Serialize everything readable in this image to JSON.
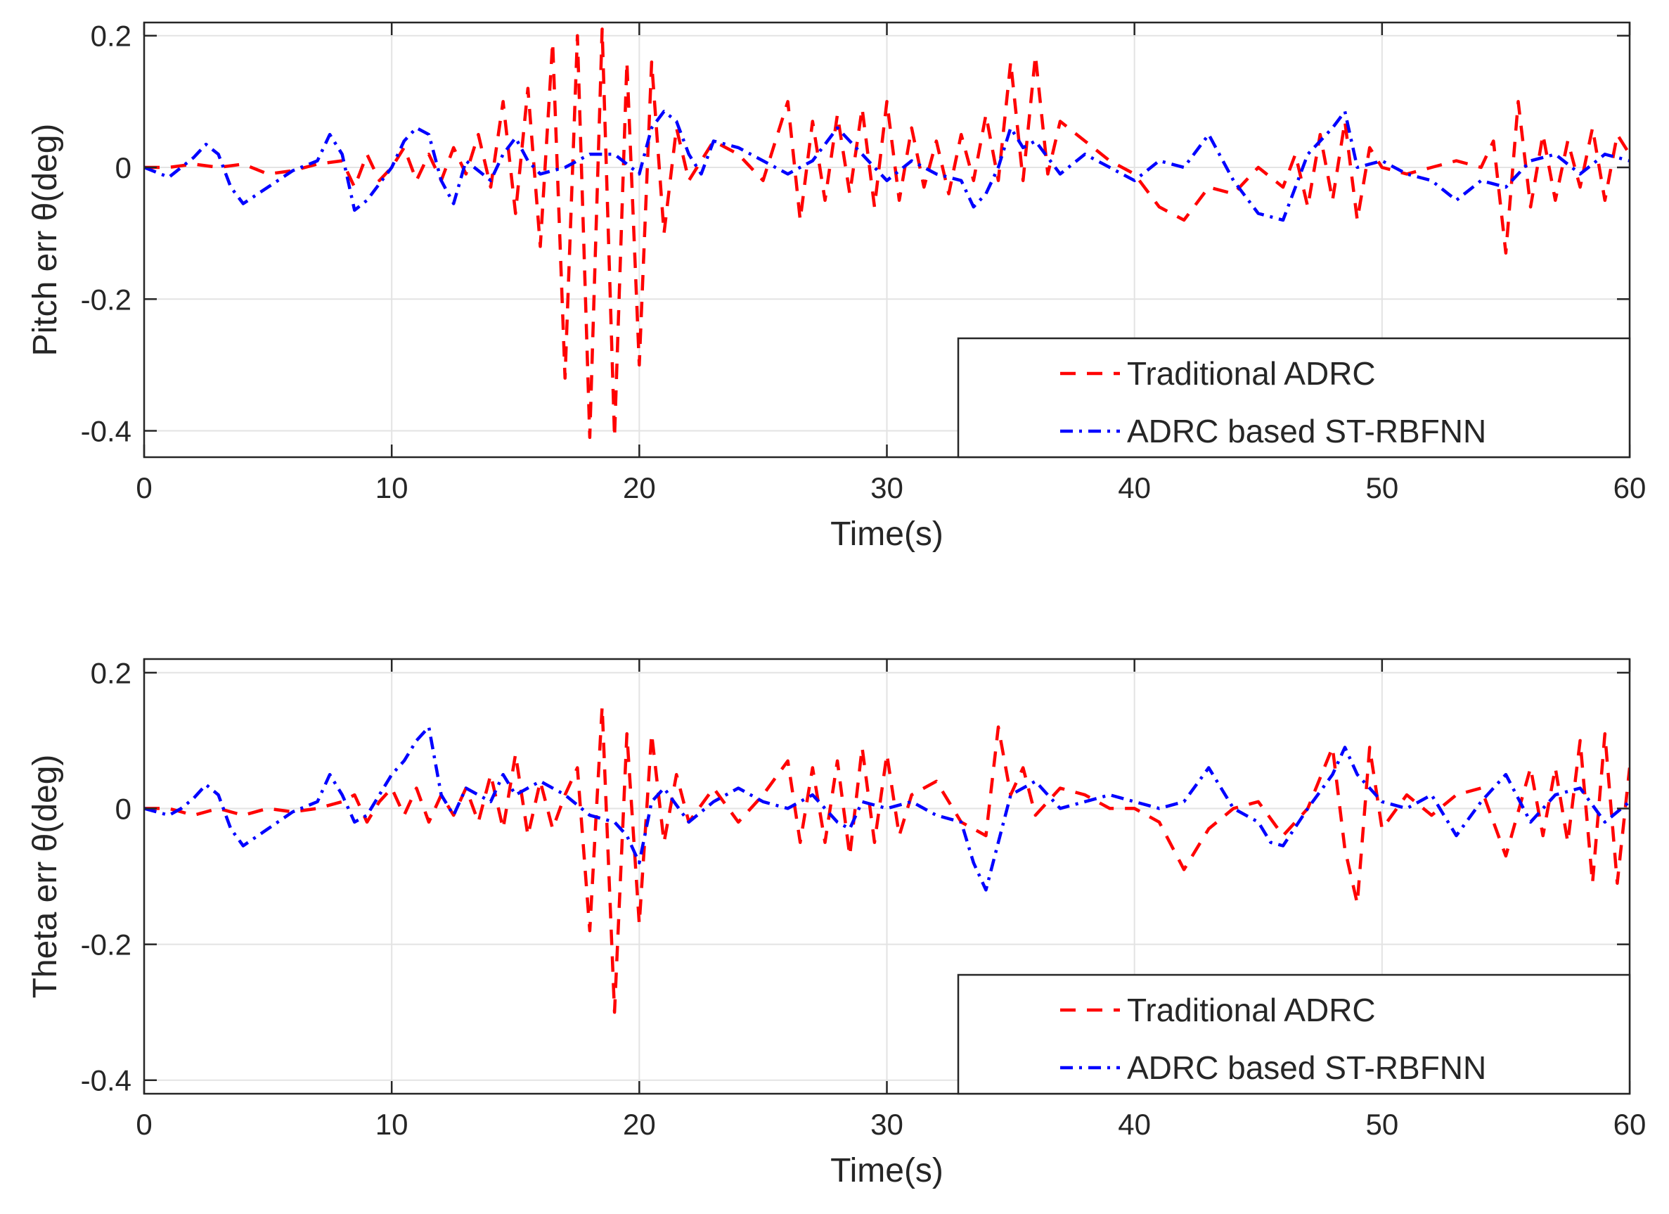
{
  "chart_data": [
    {
      "type": "line",
      "title": "",
      "xlabel": "Time(s)",
      "ylabel": "Pitch err θ(deg)",
      "xlim": [
        0,
        60
      ],
      "ylim": [
        -0.44,
        0.22
      ],
      "xticks": [
        0,
        10,
        20,
        30,
        40,
        50,
        60
      ],
      "xtick_labels": [
        "0",
        "10",
        "20",
        "30",
        "40",
        "50",
        "60"
      ],
      "yticks": [
        0.2,
        0,
        -0.2,
        -0.4
      ],
      "ytick_labels": [
        "0.2",
        "0",
        "-0.2",
        "-0.4"
      ],
      "grid": true,
      "legend_position": "bottom-right",
      "series": [
        {
          "name": "Traditional ADRC",
          "color": "#ff0000",
          "style": "dashed",
          "x": [
            0,
            1,
            2,
            3,
            4,
            5,
            6,
            7,
            8,
            8.5,
            9,
            9.5,
            10,
            10.5,
            11,
            11.5,
            12,
            12.5,
            13,
            13.5,
            14,
            14.5,
            15,
            15.5,
            16,
            16.5,
            17,
            17.5,
            18,
            18.5,
            19,
            19.5,
            20,
            20.5,
            21,
            21.5,
            22,
            23,
            24,
            25,
            26,
            26.5,
            27,
            27.5,
            28,
            28.5,
            29,
            29.5,
            30,
            30.5,
            31,
            31.5,
            32,
            32.5,
            33,
            33.5,
            34,
            34.5,
            35,
            35.5,
            36,
            36.5,
            37,
            38,
            39,
            40,
            41,
            42,
            43,
            44,
            45,
            46,
            46.5,
            47,
            47.5,
            48,
            48.5,
            49,
            49.5,
            50,
            51,
            52,
            53,
            54,
            54.5,
            55,
            55.5,
            56,
            56.5,
            57,
            57.5,
            58,
            58.5,
            59,
            59.5,
            60
          ],
          "values": [
            0,
            0,
            0.005,
            0,
            0.005,
            -0.01,
            -0.005,
            0.005,
            0.01,
            -0.03,
            0.02,
            -0.02,
            0,
            0.03,
            -0.02,
            0.02,
            -0.02,
            0.03,
            -0.01,
            0.05,
            -0.03,
            0.1,
            -0.07,
            0.12,
            -0.12,
            0.19,
            -0.32,
            0.2,
            -0.41,
            0.21,
            -0.41,
            0.16,
            -0.3,
            0.16,
            -0.1,
            0.06,
            -0.02,
            0.04,
            0.02,
            -0.02,
            0.1,
            -0.08,
            0.07,
            -0.05,
            0.08,
            -0.04,
            0.09,
            -0.06,
            0.1,
            -0.05,
            0.06,
            -0.03,
            0.04,
            -0.04,
            0.05,
            -0.02,
            0.08,
            -0.02,
            0.16,
            -0.02,
            0.17,
            -0.01,
            0.07,
            0.04,
            0.01,
            -0.01,
            -0.06,
            -0.08,
            -0.03,
            -0.04,
            0,
            -0.03,
            0.02,
            -0.06,
            0.05,
            -0.05,
            0.07,
            -0.08,
            0.03,
            0,
            -0.01,
            0,
            0.01,
            0,
            0.04,
            -0.13,
            0.1,
            -0.06,
            0.05,
            -0.05,
            0.04,
            -0.03,
            0.06,
            -0.05,
            0.05,
            0.02
          ]
        },
        {
          "name": "ADRC based ST-RBFNN",
          "color": "#0000ff",
          "style": "dashdot",
          "x": [
            0,
            1,
            1.5,
            2,
            2.5,
            3,
            3.5,
            4,
            5,
            6,
            7,
            7.5,
            8,
            8.5,
            9,
            10,
            10.5,
            11,
            11.5,
            12,
            12.5,
            13,
            14,
            14.5,
            15,
            15.5,
            16,
            17,
            18,
            19,
            20,
            20.5,
            21,
            21.5,
            22,
            22.5,
            23,
            24,
            25,
            26,
            27,
            28,
            29,
            30,
            31,
            32,
            33,
            33.5,
            34,
            34.5,
            35,
            35.5,
            36,
            37,
            38,
            39,
            40,
            41,
            42,
            43,
            44,
            45,
            46,
            47,
            48,
            48.5,
            49,
            50,
            51,
            52,
            53,
            54,
            55,
            56,
            57,
            58,
            59,
            60
          ],
          "values": [
            0,
            -0.015,
            0,
            0.015,
            0.035,
            0.02,
            -0.03,
            -0.055,
            -0.03,
            -0.005,
            0.01,
            0.05,
            0.02,
            -0.065,
            -0.05,
            0,
            0.04,
            0.06,
            0.05,
            -0.02,
            -0.055,
            0.01,
            -0.02,
            0.02,
            0.045,
            0.01,
            -0.01,
            0,
            0.02,
            0.02,
            -0.01,
            0.06,
            0.085,
            0.07,
            0.02,
            -0.01,
            0.04,
            0.03,
            0.01,
            -0.01,
            0.01,
            0.06,
            0.02,
            -0.02,
            0.01,
            -0.01,
            -0.02,
            -0.06,
            -0.04,
            0,
            0.06,
            0.03,
            0.04,
            -0.01,
            0.02,
            0,
            -0.02,
            0.01,
            0,
            0.05,
            -0.02,
            -0.07,
            -0.08,
            0.02,
            0.06,
            0.085,
            0,
            0.01,
            -0.01,
            -0.02,
            -0.05,
            -0.02,
            -0.03,
            0.01,
            0.02,
            -0.01,
            0.02,
            0.01
          ]
        }
      ]
    },
    {
      "type": "line",
      "title": "",
      "xlabel": "Time(s)",
      "ylabel": "Theta err θ(deg)",
      "xlim": [
        0,
        60
      ],
      "ylim": [
        -0.42,
        0.22
      ],
      "xticks": [
        0,
        10,
        20,
        30,
        40,
        50,
        60
      ],
      "xtick_labels": [
        "0",
        "10",
        "20",
        "30",
        "40",
        "50",
        "60"
      ],
      "yticks": [
        0.2,
        0,
        -0.2,
        -0.4
      ],
      "ytick_labels": [
        "0.2",
        "0",
        "-0.2",
        "-0.4"
      ],
      "grid": true,
      "legend_position": "bottom-right",
      "series": [
        {
          "name": "Traditional ADRC",
          "color": "#ff0000",
          "style": "dashed",
          "x": [
            0,
            1,
            2,
            3,
            4,
            5,
            6,
            7,
            8,
            8.5,
            9,
            9.5,
            10,
            10.5,
            11,
            11.5,
            12,
            12.5,
            13,
            13.5,
            14,
            14.5,
            15,
            15.5,
            16,
            16.5,
            17,
            17.5,
            18,
            18.5,
            19,
            19.5,
            20,
            20.5,
            21,
            21.5,
            22,
            23,
            24,
            25,
            26,
            26.5,
            27,
            27.5,
            28,
            28.5,
            29,
            29.5,
            30,
            30.5,
            31,
            32,
            33,
            34,
            34.5,
            35,
            35.5,
            36,
            37,
            38,
            39,
            40,
            41,
            42,
            43,
            44,
            45,
            46,
            47,
            48,
            48.5,
            49,
            49.5,
            50,
            51,
            52,
            53,
            54,
            55,
            56,
            56.5,
            57,
            57.5,
            58,
            58.5,
            59,
            59.5,
            60
          ],
          "values": [
            0,
            0,
            -0.01,
            0,
            -0.01,
            0,
            -0.005,
            0,
            0.01,
            0.02,
            -0.02,
            0.01,
            0.03,
            -0.01,
            0.03,
            -0.02,
            0.02,
            -0.01,
            0.03,
            -0.02,
            0.05,
            -0.03,
            0.08,
            -0.04,
            0.04,
            -0.03,
            0.02,
            0.06,
            -0.18,
            0.15,
            -0.3,
            0.11,
            -0.17,
            0.11,
            -0.05,
            0.05,
            -0.02,
            0.03,
            -0.02,
            0.02,
            0.07,
            -0.05,
            0.06,
            -0.05,
            0.07,
            -0.07,
            0.09,
            -0.05,
            0.08,
            -0.04,
            0.02,
            0.04,
            -0.02,
            -0.04,
            0.12,
            0.02,
            0.06,
            -0.01,
            0.03,
            0.02,
            0,
            0,
            -0.02,
            -0.09,
            -0.03,
            0,
            0.01,
            -0.04,
            0,
            0.09,
            -0.06,
            -0.14,
            0.09,
            -0.03,
            0.02,
            -0.01,
            0.02,
            0.03,
            -0.07,
            0.06,
            -0.04,
            0.06,
            -0.05,
            0.1,
            -0.11,
            0.11,
            -0.11,
            0.06
          ]
        },
        {
          "name": "ADRC based ST-RBFNN",
          "color": "#0000ff",
          "style": "dashdot",
          "x": [
            0,
            1,
            1.5,
            2,
            2.5,
            3,
            3.5,
            4,
            5,
            6,
            7,
            7.5,
            8,
            8.5,
            9,
            10,
            10.5,
            11,
            11.5,
            12,
            12.5,
            13,
            14,
            14.5,
            15,
            16,
            17,
            18,
            19,
            19.5,
            20,
            20.5,
            21,
            22,
            23,
            24,
            25,
            26,
            27,
            28,
            28.5,
            29,
            30,
            31,
            32,
            33,
            33.5,
            34,
            34.5,
            35,
            36,
            37,
            38,
            39,
            40,
            41,
            42,
            43,
            44,
            45,
            45.5,
            46,
            47,
            48,
            48.5,
            49,
            50,
            51,
            52,
            53,
            54,
            55,
            56,
            57,
            58,
            59,
            60
          ],
          "values": [
            0,
            -0.01,
            0,
            0.015,
            0.035,
            0.02,
            -0.03,
            -0.055,
            -0.03,
            -0.005,
            0.01,
            0.05,
            0.02,
            -0.02,
            -0.01,
            0.05,
            0.07,
            0.1,
            0.12,
            0.02,
            -0.01,
            0.03,
            0.01,
            0.05,
            0.02,
            0.04,
            0.02,
            -0.01,
            -0.02,
            -0.04,
            -0.08,
            0.01,
            0.03,
            -0.02,
            0.01,
            0.03,
            0.01,
            0,
            0.02,
            -0.02,
            -0.03,
            0.01,
            0,
            0.01,
            -0.01,
            -0.02,
            -0.08,
            -0.12,
            -0.05,
            0.02,
            0.04,
            0,
            0.01,
            0.02,
            0.01,
            0,
            0.01,
            0.06,
            0,
            -0.02,
            -0.05,
            -0.055,
            0,
            0.05,
            0.09,
            0.05,
            0.01,
            0,
            0.02,
            -0.04,
            0.01,
            0.05,
            -0.02,
            0.02,
            0.03,
            -0.02,
            0.01
          ]
        }
      ]
    }
  ]
}
